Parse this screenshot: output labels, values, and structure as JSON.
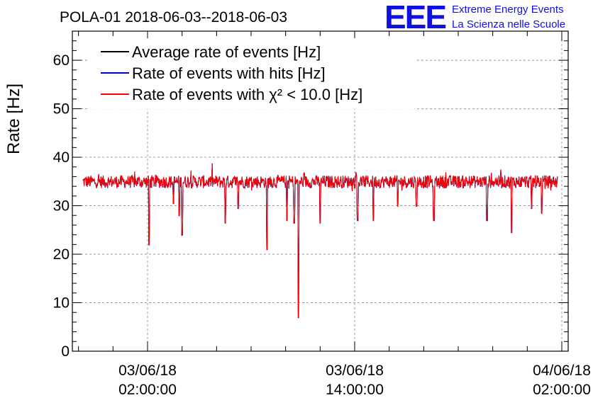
{
  "chart_data": {
    "type": "line",
    "title": "POLA-01 2018-06-03--2018-06-03",
    "xlabel": "",
    "ylabel": "Rate [Hz]",
    "ylim": [
      0,
      66
    ],
    "yticks": [
      "0",
      "10",
      "20",
      "30",
      "40",
      "50",
      "60"
    ],
    "xticks": [
      {
        "date": "03/06/18",
        "time": "02:00:00"
      },
      {
        "date": "03/06/18",
        "time": "14:00:00"
      },
      {
        "date": "04/06/18",
        "time": "02:00:00"
      }
    ],
    "xrange_hours": [
      "2018-06-02 22:15",
      "2018-06-04 02:10"
    ],
    "grid": true,
    "legend_position": "top-left",
    "series": [
      {
        "name": "Average rate of events [Hz]",
        "color": "#000000",
        "baseline": 35
      },
      {
        "name": "Rate of events with hits [Hz]",
        "color": "#0000cc",
        "baseline": 35
      },
      {
        "name": "Rate of events with χ² < 10.0 [Hz]",
        "color": "#ff0000",
        "baseline": 35,
        "dips": [
          {
            "time": "2018-06-03 02:05",
            "value": 22
          },
          {
            "time": "2018-06-03 03:30",
            "value": 30.5
          },
          {
            "time": "2018-06-03 03:50",
            "value": 28
          },
          {
            "time": "2018-06-03 04:00",
            "value": 24
          },
          {
            "time": "2018-06-03 06:30",
            "value": 26.5
          },
          {
            "time": "2018-06-03 07:15",
            "value": 29.5
          },
          {
            "time": "2018-06-03 08:55",
            "value": 21
          },
          {
            "time": "2018-06-03 10:05",
            "value": 27
          },
          {
            "time": "2018-06-03 10:30",
            "value": 26.5
          },
          {
            "time": "2018-06-03 10:45",
            "value": 7
          },
          {
            "time": "2018-06-03 12:00",
            "value": 26.5
          },
          {
            "time": "2018-06-03 14:10",
            "value": 27
          },
          {
            "time": "2018-06-03 15:05",
            "value": 27
          },
          {
            "time": "2018-06-03 16:30",
            "value": 30
          },
          {
            "time": "2018-06-03 17:35",
            "value": 30
          },
          {
            "time": "2018-06-03 18:35",
            "value": 27
          },
          {
            "time": "2018-06-03 21:40",
            "value": 27
          },
          {
            "time": "2018-06-03 23:05",
            "value": 24.5
          },
          {
            "time": "2018-06-04 00:15",
            "value": 29.5
          },
          {
            "time": "2018-06-04 00:50",
            "value": 28.5
          }
        ]
      }
    ]
  },
  "logo": {
    "mark": "EEE",
    "line1": "Extreme Energy Events",
    "line2": "La Scienza nelle Scuole"
  },
  "legend": [
    {
      "label": "Average rate of events [Hz]",
      "color": "#000000"
    },
    {
      "label": "Rate of events with hits [Hz]",
      "color": "#0000cc"
    },
    {
      "label": "Rate of events with χ² < 10.0 [Hz]",
      "color": "#ff0000"
    }
  ]
}
